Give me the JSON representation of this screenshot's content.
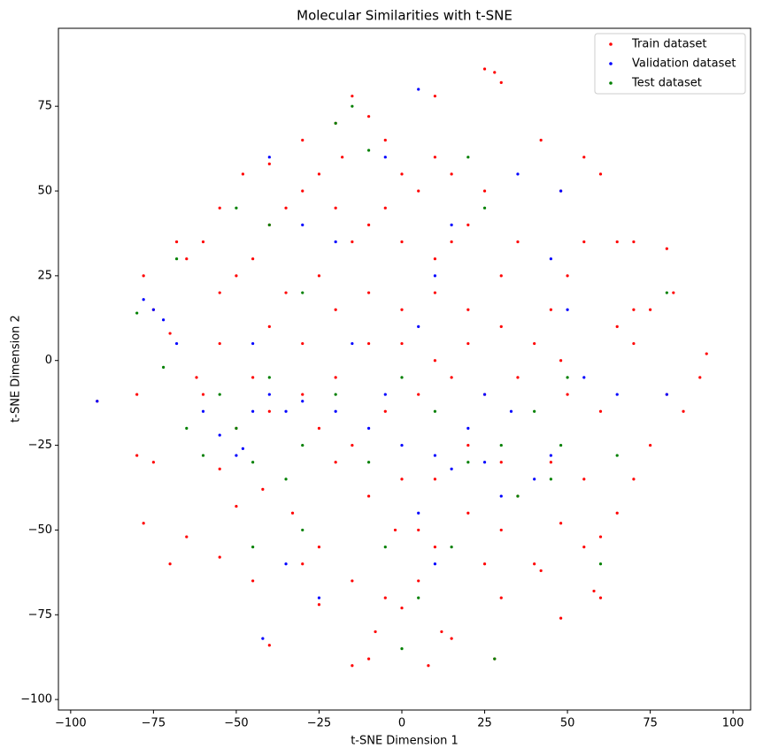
{
  "chart_data": {
    "type": "scatter",
    "title": "Molecular Similarities with t-SNE",
    "x_label": "t-SNE Dimension 1",
    "y_label": "t-SNE Dimension 2",
    "xlim": [
      -103.7,
      105.3
    ],
    "ylim": [
      -103.1,
      98.0
    ],
    "xticks": [
      {
        "value": -100,
        "label": "−100"
      },
      {
        "value": -75,
        "label": "−75"
      },
      {
        "value": -50,
        "label": "−50"
      },
      {
        "value": -25,
        "label": "−25"
      },
      0,
      25,
      50,
      75,
      100
    ],
    "yticks": [
      {
        "value": -100,
        "label": "−100"
      },
      {
        "value": -75,
        "label": "−75"
      },
      {
        "value": -50,
        "label": "−50"
      },
      {
        "value": -25,
        "label": "−25"
      },
      0,
      25,
      50,
      75
    ],
    "legend": "upper right",
    "grid": false,
    "series": [
      {
        "name": "Train dataset",
        "color": "#ff0000",
        "x": [
          -15,
          -10,
          -20,
          -5,
          -18,
          -25,
          -30,
          -35,
          -40,
          -45,
          -50,
          -55,
          -60,
          -65,
          -55,
          -48,
          -40,
          -30,
          -20,
          -10,
          0,
          10,
          15,
          20,
          25,
          15,
          10,
          5,
          0,
          -5,
          -15,
          -25,
          -35,
          -40,
          -30,
          -20,
          -10,
          0,
          10,
          20,
          30,
          35,
          30,
          20,
          10,
          0,
          -10,
          -20,
          -30,
          -45,
          -55,
          -60,
          -50,
          -40,
          -25,
          -15,
          -5,
          5,
          15,
          25,
          35,
          40,
          45,
          50,
          55,
          65,
          70,
          80,
          82,
          75,
          70,
          80,
          90,
          92,
          85,
          75,
          70,
          60,
          50,
          48,
          45,
          55,
          65,
          60,
          55,
          48,
          40,
          30,
          28,
          15,
          8,
          -10,
          -15,
          -25,
          -30,
          -40,
          -45,
          -55,
          -50,
          -42,
          -33,
          -25,
          -15,
          -5,
          0,
          5,
          10,
          20,
          25,
          35,
          30,
          20,
          10,
          0,
          -10,
          -20,
          -78,
          -70,
          -65,
          -80,
          -75,
          -92,
          -80,
          -75,
          -70,
          -78,
          -68,
          28,
          30,
          25,
          10,
          42,
          55,
          60,
          48,
          65,
          70,
          58,
          60,
          48,
          42,
          -2,
          5,
          30,
          -8,
          12,
          -55,
          -62
        ],
        "y": [
          78,
          72,
          70,
          65,
          60,
          55,
          50,
          45,
          40,
          30,
          25,
          20,
          35,
          30,
          45,
          55,
          58,
          65,
          45,
          40,
          35,
          30,
          35,
          40,
          50,
          55,
          60,
          50,
          55,
          45,
          35,
          25,
          20,
          10,
          5,
          15,
          20,
          15,
          20,
          15,
          25,
          35,
          10,
          5,
          0,
          5,
          5,
          -5,
          -10,
          -5,
          5,
          -10,
          -20,
          -15,
          -20,
          -25,
          -15,
          -10,
          -5,
          -10,
          -5,
          5,
          15,
          25,
          35,
          35,
          35,
          33,
          20,
          15,
          5,
          -10,
          -5,
          2,
          -15,
          -25,
          -35,
          -15,
          -10,
          0,
          -30,
          -35,
          -45,
          -52,
          -55,
          -48,
          -60,
          -70,
          -88,
          -82,
          -90,
          -88,
          -90,
          -72,
          -60,
          -84,
          -65,
          -58,
          -43,
          -38,
          -45,
          -55,
          -65,
          -70,
          -73,
          -65,
          -55,
          -45,
          -60,
          -40,
          -30,
          -25,
          -35,
          -35,
          -40,
          -30,
          -48,
          -60,
          -52,
          -28,
          -30,
          -12,
          -10,
          15,
          8,
          25,
          35,
          85,
          82,
          86,
          78,
          65,
          60,
          55,
          50,
          10,
          15,
          -68,
          -70,
          -76,
          -62,
          -50,
          -50,
          -50,
          -80,
          -80,
          -32,
          -5
        ]
      },
      {
        "name": "Validation dataset",
        "color": "#0000ff",
        "x": [
          -50,
          -48,
          -45,
          -40,
          -35,
          -30,
          -55,
          -60,
          -75,
          -72,
          -78,
          -68,
          -20,
          -10,
          0,
          10,
          15,
          20,
          25,
          30,
          5,
          -5,
          5,
          10,
          15,
          -5,
          -20,
          -30,
          -40,
          5,
          35,
          45,
          48,
          50,
          45,
          40,
          25,
          55,
          -42,
          -35,
          -25,
          10,
          -92,
          80,
          65,
          -15,
          -45,
          33
        ],
        "y": [
          -28,
          -26,
          -15,
          -10,
          -15,
          -12,
          -22,
          -15,
          15,
          12,
          18,
          5,
          -15,
          -20,
          -25,
          -28,
          -32,
          -20,
          -30,
          -40,
          -45,
          -10,
          10,
          25,
          40,
          60,
          35,
          40,
          60,
          80,
          55,
          30,
          50,
          15,
          -28,
          -35,
          -10,
          -5,
          -82,
          -60,
          -70,
          -60,
          -12,
          -10,
          -10,
          5,
          5,
          -15
        ]
      },
      {
        "name": "Test dataset",
        "color": "#008000",
        "x": [
          -55,
          -50,
          -45,
          -40,
          -35,
          -30,
          -60,
          -65,
          -68,
          -80,
          -72,
          -20,
          -10,
          0,
          10,
          20,
          30,
          35,
          5,
          0,
          28,
          -5,
          -20,
          -15,
          -10,
          -40,
          -50,
          -30,
          20,
          25,
          45,
          48,
          50,
          65,
          80,
          60,
          15,
          -30,
          -45,
          40
        ],
        "y": [
          -10,
          -20,
          -30,
          -5,
          -35,
          -25,
          -28,
          -20,
          30,
          14,
          -2,
          -10,
          -30,
          -5,
          -15,
          -30,
          -25,
          -40,
          -70,
          -85,
          -88,
          -55,
          70,
          75,
          62,
          40,
          45,
          20,
          60,
          45,
          -35,
          -25,
          -5,
          -28,
          20,
          -60,
          -55,
          -50,
          -55,
          -15
        ]
      }
    ]
  }
}
